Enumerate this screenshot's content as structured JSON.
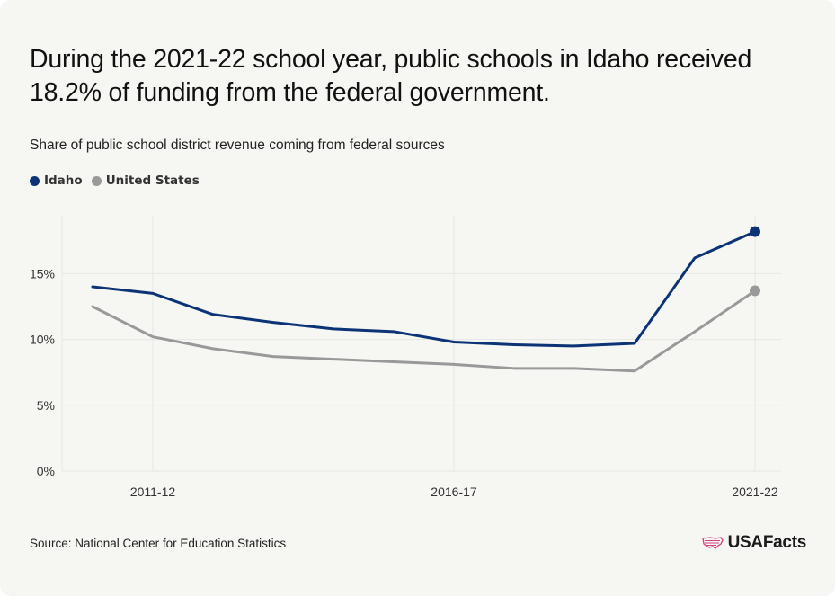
{
  "title": "During the 2021-22 school year, public schools in Idaho received 18.2% of funding from the federal government.",
  "subtitle": "Share of public school district revenue coming from federal sources",
  "source": "Source: National Center for Education Statistics",
  "brand": "USAFacts",
  "colors": {
    "idaho": "#0b3375",
    "united_states": "#999999",
    "grid": "#e6e6e3",
    "background": "#f6f6f3"
  },
  "chart_data": {
    "type": "line",
    "x": [
      "2010-11",
      "2011-12",
      "2012-13",
      "2013-14",
      "2014-15",
      "2015-16",
      "2016-17",
      "2017-18",
      "2018-19",
      "2019-20",
      "2020-21",
      "2021-22"
    ],
    "x_tick_labels": [
      "2011-12",
      "2016-17",
      "2021-22"
    ],
    "y_ticks": [
      0,
      5,
      10,
      15
    ],
    "y_tick_labels": [
      "0%",
      "5%",
      "10%",
      "15%"
    ],
    "ylim": [
      0,
      19.4
    ],
    "grid": true,
    "legend_position": "top-left",
    "series": [
      {
        "name": "Idaho",
        "values": [
          14.0,
          13.5,
          11.9,
          11.3,
          10.8,
          10.6,
          9.8,
          9.6,
          9.5,
          9.7,
          16.2,
          18.2
        ]
      },
      {
        "name": "United States",
        "values": [
          12.5,
          10.2,
          9.3,
          8.7,
          8.5,
          8.3,
          8.1,
          7.8,
          7.8,
          7.6,
          10.6,
          13.7
        ]
      }
    ]
  }
}
